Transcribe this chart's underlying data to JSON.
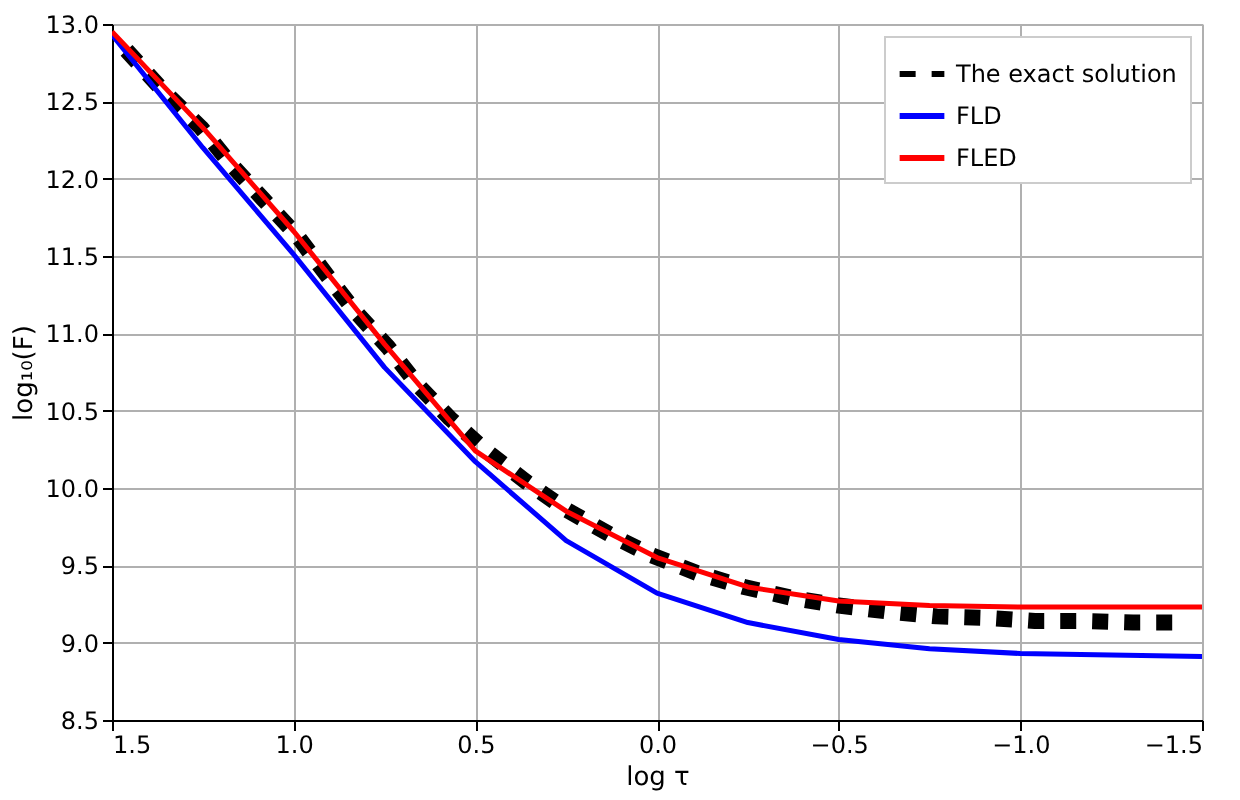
{
  "chart_data": {
    "type": "line",
    "xlabel": "log τ",
    "ylabel": "log₁₀(F)",
    "xlim": [
      1.5,
      -1.5
    ],
    "ylim": [
      8.5,
      13.0
    ],
    "xticks": [
      1.5,
      {
        "value": 1.0,
        "label": "1.0"
      },
      0.5,
      {
        "value": 0.0,
        "label": "0.0"
      },
      {
        "value": -0.5,
        "label": "−0.5"
      },
      {
        "value": -1.0,
        "label": "−1.0"
      },
      {
        "value": -1.5,
        "label": "−1.5"
      }
    ],
    "yticks": [
      8.5,
      {
        "value": 9.0,
        "label": "9.0"
      },
      9.5,
      {
        "value": 10.0,
        "label": "10.0"
      },
      10.5,
      {
        "value": 11.0,
        "label": "11.0"
      },
      11.5,
      {
        "value": 12.0,
        "label": "12.0"
      },
      12.5,
      {
        "value": 13.0,
        "label": "13.0"
      }
    ],
    "grid": true,
    "legend": "top right",
    "series": [
      {
        "name": "The exact solution",
        "color": "#000000",
        "line_style": "dotted",
        "x": [
          1.46,
          1.36,
          1.255,
          1.175,
          1.085,
          0.99,
          0.91,
          0.83,
          0.74,
          0.66,
          0.57,
          0.47,
          0.36,
          0.25,
          0.13,
          0.02,
          -0.11,
          -0.24,
          -0.37,
          -0.5,
          -0.64,
          -0.77,
          -0.91,
          -1.04,
          -1.17,
          -1.31,
          -1.44
        ],
        "values": [
          12.83,
          12.57,
          12.33,
          12.1,
          11.87,
          11.63,
          11.38,
          11.14,
          10.91,
          10.67,
          10.45,
          10.24,
          10.04,
          9.86,
          9.7,
          9.57,
          9.45,
          9.36,
          9.29,
          9.24,
          9.2,
          9.17,
          9.16,
          9.14,
          9.14,
          9.13,
          9.13
        ]
      },
      {
        "name": "FLD",
        "color": "#0000ff",
        "line_style": "solid",
        "x": [
          1.5,
          1.25,
          1.0,
          0.75,
          0.5,
          0.25,
          0.0,
          -0.25,
          -0.5,
          -0.75,
          -1.0,
          -1.25,
          -1.5
        ],
        "values": [
          12.93,
          12.2,
          11.51,
          10.78,
          10.17,
          9.66,
          9.32,
          9.13,
          9.02,
          8.96,
          8.93,
          8.92,
          8.91
        ]
      },
      {
        "name": "FLED",
        "color": "#ff0000",
        "line_style": "solid",
        "x": [
          1.5,
          1.25,
          1.0,
          0.75,
          0.5,
          0.25,
          0.0,
          -0.25,
          -0.5,
          -0.75,
          -1.0,
          -1.25,
          -1.5
        ],
        "values": [
          12.95,
          12.33,
          11.66,
          10.93,
          10.24,
          9.85,
          9.55,
          9.36,
          9.27,
          9.24,
          9.23,
          9.23,
          9.23
        ]
      }
    ]
  }
}
